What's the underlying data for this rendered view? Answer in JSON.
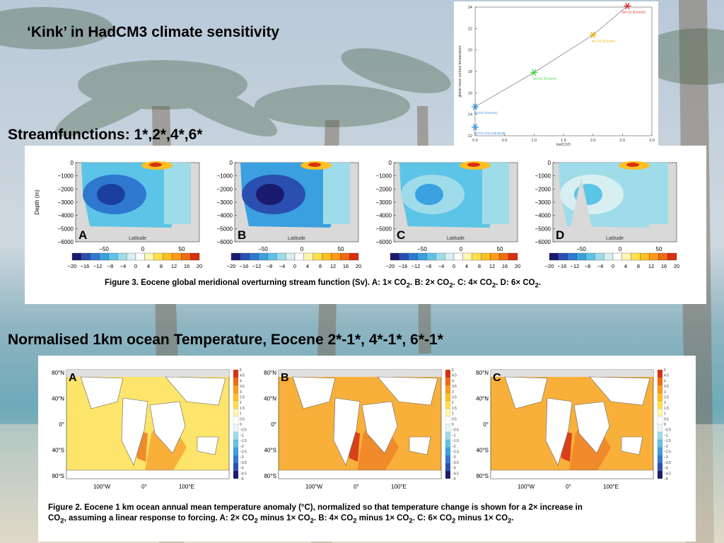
{
  "headings": {
    "kink": "‘Kink’ in HadCM3 climate sensitivity",
    "streamfunctions": "Streamfunctions: 1*,2*,4*,6*",
    "normalised": "Normalised 1km ocean Temperature, Eocene 2*-1*, 4*-1*, 6*-1*"
  },
  "chart_data": [
    {
      "type": "scatter",
      "xlabel": "log(CO2)",
      "ylabel": "global mean surface temperature",
      "xlim": [
        0.0,
        3.0
      ],
      "ylim": [
        12,
        24
      ],
      "xticks": [
        "0.0",
        "0.5",
        "1.0",
        "1.5",
        "2.0",
        "2.5",
        "3.0"
      ],
      "yticks": [
        "12",
        "14",
        "16",
        "18",
        "20",
        "22",
        "24"
      ],
      "points": [
        {
          "x": 0.0,
          "y": 12.8,
          "label": "1xCO2 (Pre-industrial)",
          "color": "#3a8de0"
        },
        {
          "x": 0.0,
          "y": 14.7,
          "label": "1xCO2 (Eocene)",
          "color": "#3a8de0"
        },
        {
          "x": 1.0,
          "y": 17.9,
          "label": "2xCO2 (Eocene)",
          "color": "#3ed63e"
        },
        {
          "x": 2.0,
          "y": 21.4,
          "label": "4xCO2 (Eocene)",
          "color": "#f0b000"
        },
        {
          "x": 2.585,
          "y": 24.1,
          "label": "6xCO2 (Eocene)",
          "color": "#e02020"
        }
      ]
    },
    {
      "type": "heatmap",
      "panels": [
        "A",
        "B",
        "C",
        "D"
      ],
      "xlabel": "Latitude",
      "ylabel": "Depth (m)",
      "yticks": [
        "0",
        "−1000",
        "−2000",
        "−3000",
        "−4000",
        "−5000",
        "−6000"
      ],
      "xticks": [
        "−50",
        "0",
        "50"
      ],
      "colorbar_ticks": [
        "−20",
        "−16",
        "−12",
        "−8",
        "−4",
        "0",
        "4",
        "8",
        "12",
        "16",
        "20"
      ],
      "colorbar_colors": [
        "#1a1a6e",
        "#2a4fb0",
        "#2f78d0",
        "#3aa0e0",
        "#5cc4e6",
        "#9fdcea",
        "#d8eff2",
        "#ffffff",
        "#fff6b0",
        "#ffe04a",
        "#ffbf20",
        "#ff9a1a",
        "#f06a10",
        "#d83010"
      ],
      "caption_prefix": "Figure 3. Eocene global meridional overturning stream function (Sv). A: 1× CO",
      "caption_sub": "2",
      "caption_b": ". B: 2× CO",
      "caption_c": ". C: 4× CO",
      "caption_d": ". D: 6× CO",
      "caption_end": "."
    },
    {
      "type": "heatmap",
      "panels": [
        "A",
        "B",
        "C"
      ],
      "yticks": [
        "80°N",
        "40°N",
        "0°",
        "40°S",
        "80°S"
      ],
      "xticks": [
        "100°W",
        "0°",
        "100°E"
      ],
      "colorbar_ticks": [
        "5",
        "4.5",
        "4",
        "3.5",
        "3",
        "2.5",
        "2",
        "1.5",
        "1",
        "0.5",
        "0",
        "−0.5",
        "−1",
        "−1.5",
        "−2",
        "−2.5",
        "−3",
        "−3.5",
        "−4",
        "−4.5",
        "−5"
      ],
      "caption_line1": "Figure 2. Eocene 1 km ocean annual mean temperature anomaly (°C), normalized so that temperature change is shown for a 2× increase in",
      "caption_line2_a": "CO",
      "caption_line2_b": ", assuming a linear response to forcing. A: 2× CO",
      "caption_line2_c": " minus 1× CO",
      "caption_line2_d": ". B: 4× CO",
      "caption_line2_e": ". C:  6× CO",
      "caption_sub": "2",
      "caption_end": "."
    }
  ]
}
